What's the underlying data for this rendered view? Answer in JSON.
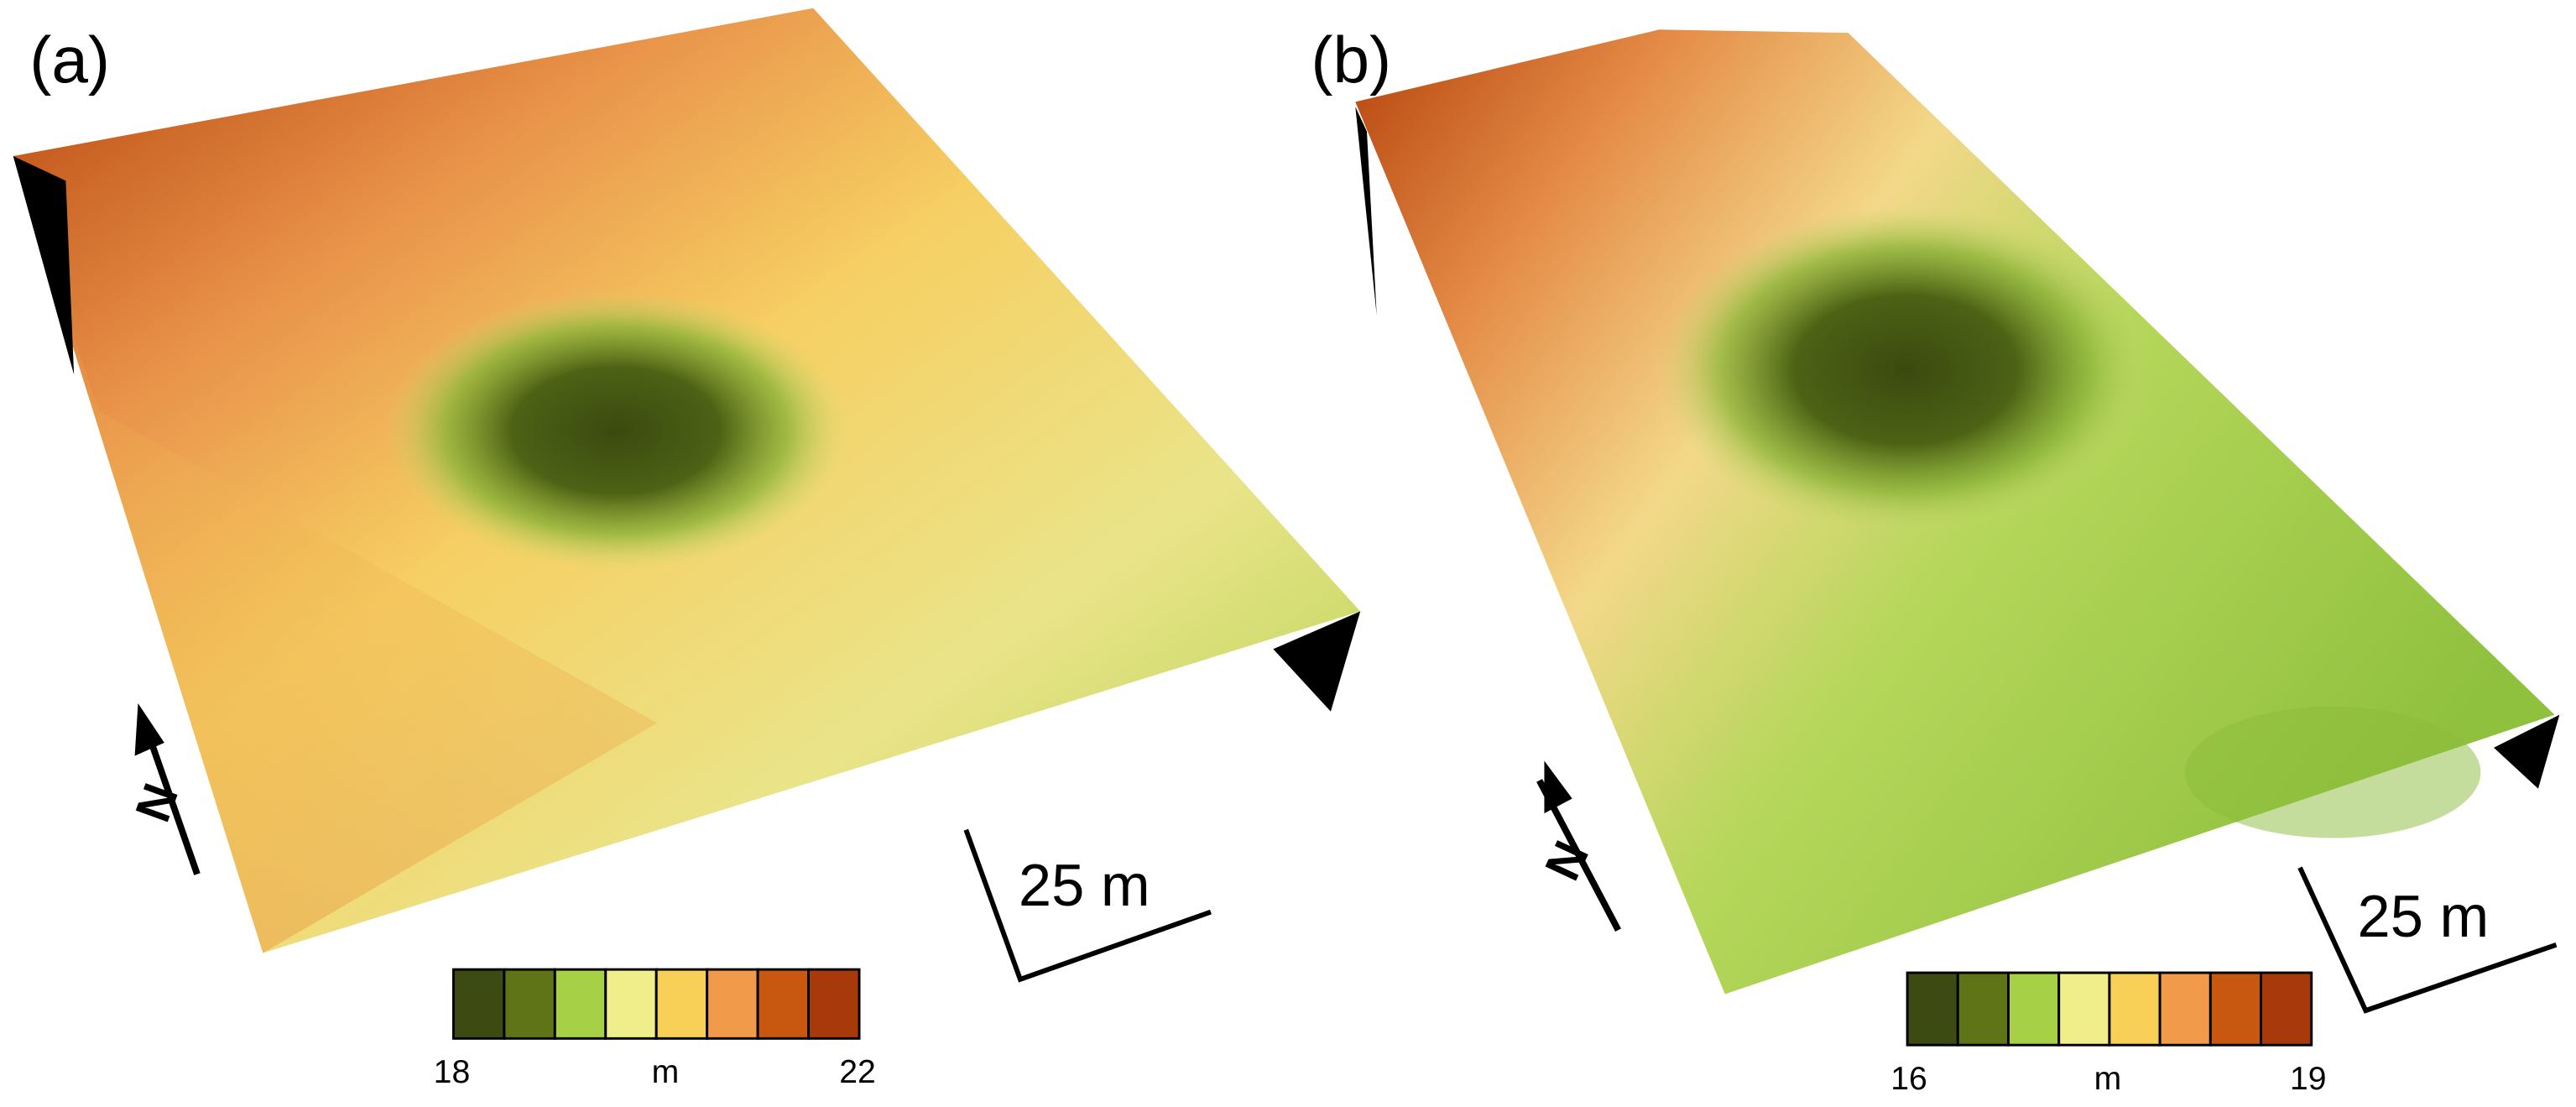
{
  "panels": [
    {
      "label": "(a)",
      "scale_bar": "25 m",
      "north": "N",
      "colorbar": {
        "min_label": "18",
        "unit": "m",
        "max_label": "22",
        "colors": [
          "#3d4a12",
          "#5e7417",
          "#a6d045",
          "#f0ee8a",
          "#f8cf57",
          "#f09a4a",
          "#c8570f",
          "#a8390b"
        ]
      }
    },
    {
      "label": "(b)",
      "scale_bar": "25 m",
      "north": "N",
      "colorbar": {
        "min_label": "16",
        "unit": "m",
        "max_label": "19",
        "colors": [
          "#3d4a12",
          "#5e7417",
          "#a6d045",
          "#f0ee8a",
          "#f8cf57",
          "#f09a4a",
          "#c8570f",
          "#a8390b"
        ]
      }
    }
  ]
}
